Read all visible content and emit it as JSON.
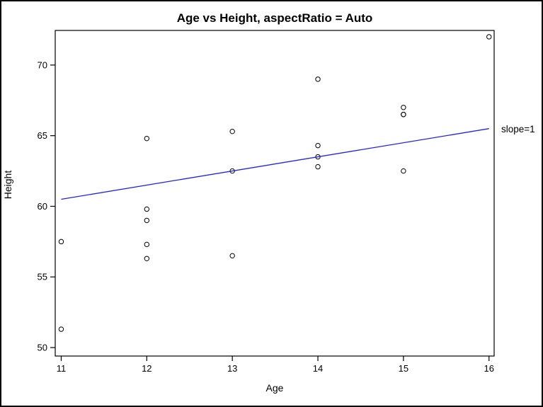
{
  "chart_data": {
    "type": "scatter",
    "title": "Age vs Height, aspectRatio = Auto",
    "xlabel": "Age",
    "ylabel": "Height",
    "x_ticks": [
      11,
      12,
      13,
      14,
      15,
      16
    ],
    "y_ticks": [
      50,
      55,
      60,
      65,
      70
    ],
    "xlim": [
      10.93,
      16.06
    ],
    "ylim": [
      49.4,
      72.45
    ],
    "grid": false,
    "legend": "none",
    "background": "#ffffff",
    "frame_color": "#000000",
    "point_color": "#000000",
    "points": [
      {
        "age": 11,
        "height": 51.3
      },
      {
        "age": 11,
        "height": 57.5
      },
      {
        "age": 12,
        "height": 56.3
      },
      {
        "age": 12,
        "height": 57.3
      },
      {
        "age": 12,
        "height": 59.0
      },
      {
        "age": 12,
        "height": 59.8
      },
      {
        "age": 12,
        "height": 64.8
      },
      {
        "age": 13,
        "height": 56.5
      },
      {
        "age": 13,
        "height": 62.5
      },
      {
        "age": 13,
        "height": 65.3
      },
      {
        "age": 14,
        "height": 62.8
      },
      {
        "age": 14,
        "height": 63.5
      },
      {
        "age": 14,
        "height": 64.3
      },
      {
        "age": 14,
        "height": 69.0
      },
      {
        "age": 15,
        "height": 62.5
      },
      {
        "age": 15,
        "height": 66.5
      },
      {
        "age": 15,
        "height": 66.5
      },
      {
        "age": 15,
        "height": 67.0
      },
      {
        "age": 16,
        "height": 72.0
      }
    ],
    "reference_line": {
      "label": "slope=1",
      "slope": 1,
      "x_start": 11,
      "y_start": 60.5,
      "x_end": 16,
      "y_end": 65.5,
      "color": "#2222e8"
    }
  }
}
